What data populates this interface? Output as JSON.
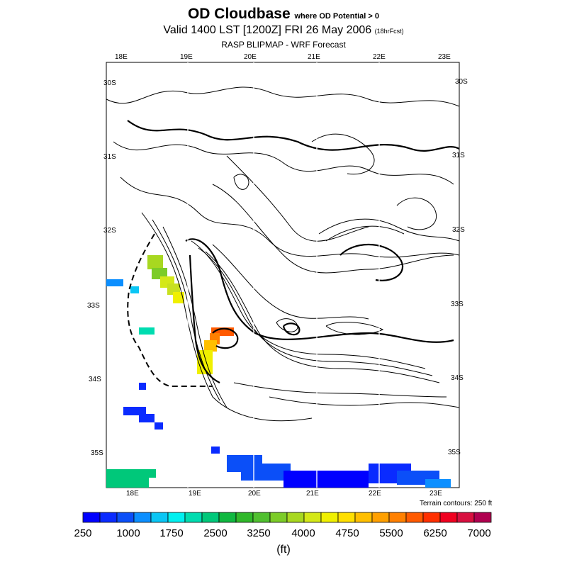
{
  "title": {
    "main": "OD Cloudbase",
    "qualifier": "where OD Potential > 0",
    "valid": "Valid 1400 LST [1200Z] FRI 26 May 2006",
    "forecast_hours": "(18hrFcst)",
    "source": "RASP BLIPMAP - WRF Forecast"
  },
  "map": {
    "top_lon_labels": [
      "18E",
      "19E",
      "20E",
      "21E",
      "22E",
      "23E"
    ],
    "bottom_lon_labels": [
      "18E",
      "19E",
      "20E",
      "21E",
      "22E",
      "23E"
    ],
    "left_lat_labels": [
      "30S",
      "31S",
      "32S",
      "33S",
      "34S",
      "35S"
    ],
    "right_lat_labels": [
      "30S",
      "31S",
      "32S",
      "33S",
      "34S",
      "35S"
    ],
    "terrain_note": "Terrain contours: 250 ft"
  },
  "legend": {
    "tick_labels": [
      "250",
      "1000",
      "1750",
      "2500",
      "3250",
      "4000",
      "4750",
      "5500",
      "6250",
      "7000"
    ],
    "unit": "(ft)",
    "colors": [
      "#0000ff",
      "#0a2bff",
      "#0b4ff8",
      "#0c8fff",
      "#0ac6f5",
      "#00f0f0",
      "#00dcb0",
      "#00c87a",
      "#10b840",
      "#30b82a",
      "#50c030",
      "#7ccc28",
      "#a8d820",
      "#d4e818",
      "#f0f000",
      "#ffdf00",
      "#ffbf00",
      "#ffa000",
      "#ff8000",
      "#ff5a00",
      "#ff3000",
      "#f00020",
      "#d81040",
      "#b00050"
    ]
  }
}
